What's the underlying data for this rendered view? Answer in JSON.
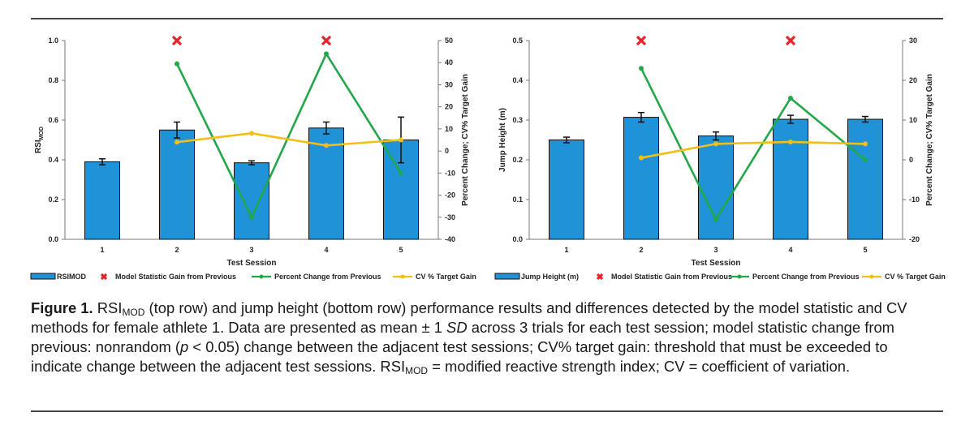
{
  "figure": {
    "caption": {
      "label": "Figure 1.",
      "p1": " RSI",
      "sub1": "MOD",
      "p2": " (top row) and jump height (bottom row) performance results and differences detected by the model statistic and CV methods for female athlete 1. Data are presented as mean ± 1 ",
      "sd": "SD",
      "p3": " across 3 trials for each test session; model statistic change from previous: nonrandom (",
      "p": "p",
      "p4": " < 0.05) change between the adjacent test sessions; CV% target gain: threshold that must be exceeded to indicate change between the adjacent test sessions. RSI",
      "sub2": "MOD",
      "p5": " = modified reactive strength index; CV = coefficient of variation."
    }
  },
  "chart_data": [
    {
      "type": "bar",
      "categories": [
        "1",
        "2",
        "3",
        "4",
        "5"
      ],
      "xlabel": "Test Session",
      "ylabel": "RSI",
      "ylabel_sub": "MOD",
      "ylim": [
        0,
        1.0
      ],
      "yticks": [
        "0.0",
        "0.2",
        "0.4",
        "0.6",
        "0.8",
        "1.0"
      ],
      "y2label": "Percent Change; CV% Target Gain",
      "y2lim": [
        -40,
        50
      ],
      "y2ticks": [
        "-40",
        "-30",
        "-20",
        "-10",
        "0",
        "10",
        "20",
        "30",
        "40",
        "50"
      ],
      "grid": false,
      "series": [
        {
          "name": "RSIMOD",
          "kind": "bar",
          "axis": "y1",
          "color": "#1f92d8",
          "values": [
            0.39,
            0.55,
            0.385,
            0.56,
            0.5
          ],
          "errors": [
            0.015,
            0.04,
            0.01,
            0.03,
            0.115
          ]
        },
        {
          "name": "Model Statistic Gain from Previous",
          "kind": "marker",
          "axis": "y1",
          "color": "#e8232a",
          "x": [
            "2",
            "4"
          ],
          "values": [
            1.0,
            1.0
          ]
        },
        {
          "name": "Percent Change from Previous",
          "kind": "line",
          "axis": "y2",
          "color": "#22a84a",
          "values": [
            null,
            39.5,
            -30,
            44,
            -10
          ]
        },
        {
          "name": "CV % Target Gain",
          "kind": "line",
          "axis": "y2",
          "color": "#f2c014",
          "values": [
            null,
            4,
            8,
            2.5,
            5
          ]
        }
      ],
      "legend": [
        "RSIMOD",
        "Model Statistic Gain from Previous",
        "Percent Change from Previous",
        "CV % Target Gain"
      ]
    },
    {
      "type": "bar",
      "categories": [
        "1",
        "2",
        "3",
        "4",
        "5"
      ],
      "xlabel": "Test Session",
      "ylabel": "Jump Height (m)",
      "ylabel_sub": "",
      "ylim": [
        0,
        0.5
      ],
      "yticks": [
        "0.0",
        "0.1",
        "0.2",
        "0.3",
        "0.4",
        "0.5"
      ],
      "y2label": "Percent Change; CV% Target Gain",
      "y2lim": [
        -20,
        30
      ],
      "y2ticks": [
        "-20",
        "-10",
        "0",
        "10",
        "20",
        "30"
      ],
      "grid": false,
      "series": [
        {
          "name": "Jump Height (m)",
          "kind": "bar",
          "axis": "y1",
          "color": "#1f92d8",
          "values": [
            0.25,
            0.307,
            0.26,
            0.302,
            0.302
          ],
          "errors": [
            0.007,
            0.012,
            0.01,
            0.01,
            0.007
          ]
        },
        {
          "name": "Model Statistic Gain from Previous",
          "kind": "marker",
          "axis": "y1",
          "color": "#e8232a",
          "x": [
            "2",
            "4"
          ],
          "values": [
            0.5,
            0.5
          ]
        },
        {
          "name": "Percent Change from Previous",
          "kind": "line",
          "axis": "y2",
          "color": "#22a84a",
          "values": [
            null,
            23,
            -15,
            15.5,
            0
          ]
        },
        {
          "name": "CV % Target Gain",
          "kind": "line",
          "axis": "y2",
          "color": "#f2c014",
          "values": [
            null,
            0.5,
            4,
            4.5,
            4
          ]
        }
      ],
      "legend": [
        "Jump Height (m)",
        "Model Statistic Gain from Previous",
        "Percent Change from Previous",
        "CV % Target Gain"
      ]
    }
  ]
}
